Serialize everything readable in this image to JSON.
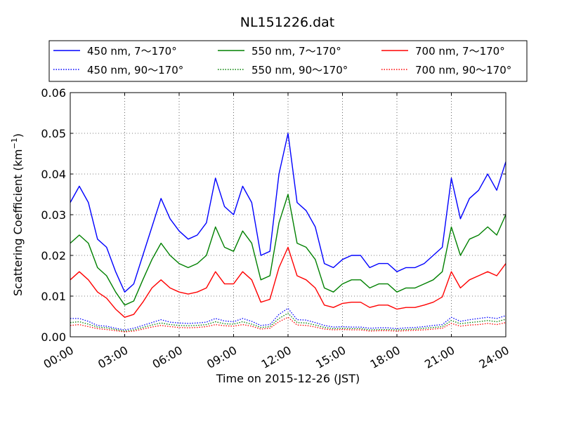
{
  "chart_data": {
    "type": "line",
    "title": "NL151226.dat",
    "xlabel": "Time on 2015-12-26 (JST)",
    "ylabel": "Scattering Coefficient (km",
    "ylabel_sup": "−1",
    "ylabel_close": ")",
    "x_unit": "hours",
    "xlim": [
      0,
      24
    ],
    "ylim": [
      0,
      0.06
    ],
    "grid": true,
    "legend_position": "top, outside plot",
    "x_ticks": [
      {
        "value": 0,
        "label": "00:00"
      },
      {
        "value": 3,
        "label": "03:00"
      },
      {
        "value": 6,
        "label": "06:00"
      },
      {
        "value": 9,
        "label": "09:00"
      },
      {
        "value": 12,
        "label": "12:00"
      },
      {
        "value": 15,
        "label": "15:00"
      },
      {
        "value": 18,
        "label": "18:00"
      },
      {
        "value": 21,
        "label": "21:00"
      },
      {
        "value": 24,
        "label": "24:00"
      }
    ],
    "y_ticks": [
      {
        "value": 0,
        "label": "0.00"
      },
      {
        "value": 0.01,
        "label": "0.01"
      },
      {
        "value": 0.02,
        "label": "0.02"
      },
      {
        "value": 0.03,
        "label": "0.03"
      },
      {
        "value": 0.04,
        "label": "0.04"
      },
      {
        "value": 0.05,
        "label": "0.05"
      },
      {
        "value": 0.06,
        "label": "0.06"
      }
    ],
    "x": [
      0,
      0.5,
      1,
      1.5,
      2,
      2.5,
      3,
      3.5,
      4,
      4.5,
      5,
      5.5,
      6,
      6.5,
      7,
      7.5,
      8,
      8.5,
      9,
      9.5,
      10,
      10.5,
      11,
      11.5,
      12,
      12.5,
      13,
      13.5,
      14,
      14.5,
      15,
      15.5,
      16,
      16.5,
      17,
      17.5,
      18,
      18.5,
      19,
      19.5,
      20,
      20.5,
      21,
      21.5,
      22,
      22.5,
      23,
      23.5,
      24
    ],
    "series": [
      {
        "name": "450 nm, 7～170°",
        "color": "#0000ff",
        "style": "solid",
        "values": [
          0.033,
          0.037,
          0.033,
          0.024,
          0.022,
          0.016,
          0.011,
          0.013,
          0.02,
          0.027,
          0.034,
          0.029,
          0.026,
          0.024,
          0.025,
          0.028,
          0.039,
          0.032,
          0.03,
          0.037,
          0.033,
          0.02,
          0.021,
          0.04,
          0.05,
          0.033,
          0.031,
          0.027,
          0.018,
          0.017,
          0.019,
          0.02,
          0.02,
          0.017,
          0.018,
          0.018,
          0.016,
          0.017,
          0.017,
          0.018,
          0.02,
          0.022,
          0.039,
          0.029,
          0.034,
          0.036,
          0.04,
          0.036,
          0.043
        ]
      },
      {
        "name": "450 nm, 90～170°",
        "color": "#0000ff",
        "style": "dotted",
        "values": [
          0.0045,
          0.0045,
          0.0038,
          0.0028,
          0.0026,
          0.0021,
          0.0017,
          0.0021,
          0.0028,
          0.0035,
          0.0042,
          0.0036,
          0.0034,
          0.0033,
          0.0034,
          0.0036,
          0.0045,
          0.0039,
          0.0037,
          0.0045,
          0.0038,
          0.0028,
          0.003,
          0.0055,
          0.007,
          0.0042,
          0.0041,
          0.0035,
          0.0028,
          0.0024,
          0.0025,
          0.0024,
          0.0024,
          0.0021,
          0.0022,
          0.0022,
          0.002,
          0.0022,
          0.0023,
          0.0025,
          0.0028,
          0.003,
          0.0048,
          0.0038,
          0.0042,
          0.0045,
          0.0048,
          0.0045,
          0.0052
        ]
      },
      {
        "name": "550 nm, 7～170°",
        "color": "#008000",
        "style": "solid",
        "values": [
          0.023,
          0.025,
          0.023,
          0.017,
          0.015,
          0.011,
          0.0078,
          0.0088,
          0.014,
          0.019,
          0.023,
          0.02,
          0.018,
          0.017,
          0.018,
          0.02,
          0.027,
          0.022,
          0.021,
          0.026,
          0.023,
          0.014,
          0.015,
          0.028,
          0.035,
          0.023,
          0.022,
          0.019,
          0.012,
          0.011,
          0.013,
          0.014,
          0.014,
          0.012,
          0.013,
          0.013,
          0.011,
          0.012,
          0.012,
          0.013,
          0.014,
          0.016,
          0.027,
          0.02,
          0.024,
          0.025,
          0.027,
          0.025,
          0.03
        ]
      },
      {
        "name": "550 nm, 90～170°",
        "color": "#008000",
        "style": "dotted",
        "values": [
          0.0035,
          0.0037,
          0.0031,
          0.0024,
          0.0022,
          0.0018,
          0.0014,
          0.0017,
          0.0023,
          0.0029,
          0.0034,
          0.003,
          0.0028,
          0.0027,
          0.0028,
          0.003,
          0.0037,
          0.0032,
          0.0031,
          0.0037,
          0.0031,
          0.0023,
          0.0025,
          0.0045,
          0.0058,
          0.0035,
          0.0034,
          0.0029,
          0.0023,
          0.002,
          0.0021,
          0.002,
          0.002,
          0.0017,
          0.0018,
          0.0018,
          0.0017,
          0.0018,
          0.0019,
          0.0021,
          0.0023,
          0.0025,
          0.004,
          0.0032,
          0.0035,
          0.0037,
          0.004,
          0.0037,
          0.0043
        ]
      },
      {
        "name": "700 nm, 7～170°",
        "color": "#ff0000",
        "style": "solid",
        "values": [
          0.014,
          0.016,
          0.014,
          0.011,
          0.0095,
          0.0068,
          0.0048,
          0.0055,
          0.0085,
          0.012,
          0.014,
          0.012,
          0.011,
          0.0105,
          0.011,
          0.012,
          0.016,
          0.013,
          0.013,
          0.016,
          0.014,
          0.0085,
          0.0092,
          0.017,
          0.022,
          0.015,
          0.014,
          0.012,
          0.0078,
          0.0072,
          0.0082,
          0.0085,
          0.0085,
          0.0072,
          0.0078,
          0.0078,
          0.0068,
          0.0072,
          0.0072,
          0.0078,
          0.0085,
          0.0098,
          0.016,
          0.012,
          0.014,
          0.015,
          0.016,
          0.015,
          0.018
        ]
      },
      {
        "name": "700 nm, 90～170°",
        "color": "#ff0000",
        "style": "dotted",
        "values": [
          0.0028,
          0.003,
          0.0025,
          0.002,
          0.0018,
          0.0015,
          0.0012,
          0.0014,
          0.0019,
          0.0024,
          0.0028,
          0.0025,
          0.0023,
          0.0022,
          0.0023,
          0.0025,
          0.003,
          0.0027,
          0.0026,
          0.003,
          0.0026,
          0.0019,
          0.0021,
          0.0037,
          0.0048,
          0.0029,
          0.0028,
          0.0024,
          0.0019,
          0.0017,
          0.0018,
          0.0017,
          0.0017,
          0.0014,
          0.0015,
          0.0015,
          0.0014,
          0.0015,
          0.0016,
          0.0017,
          0.0019,
          0.0021,
          0.0033,
          0.0026,
          0.0029,
          0.003,
          0.0033,
          0.003,
          0.0035
        ]
      }
    ]
  }
}
